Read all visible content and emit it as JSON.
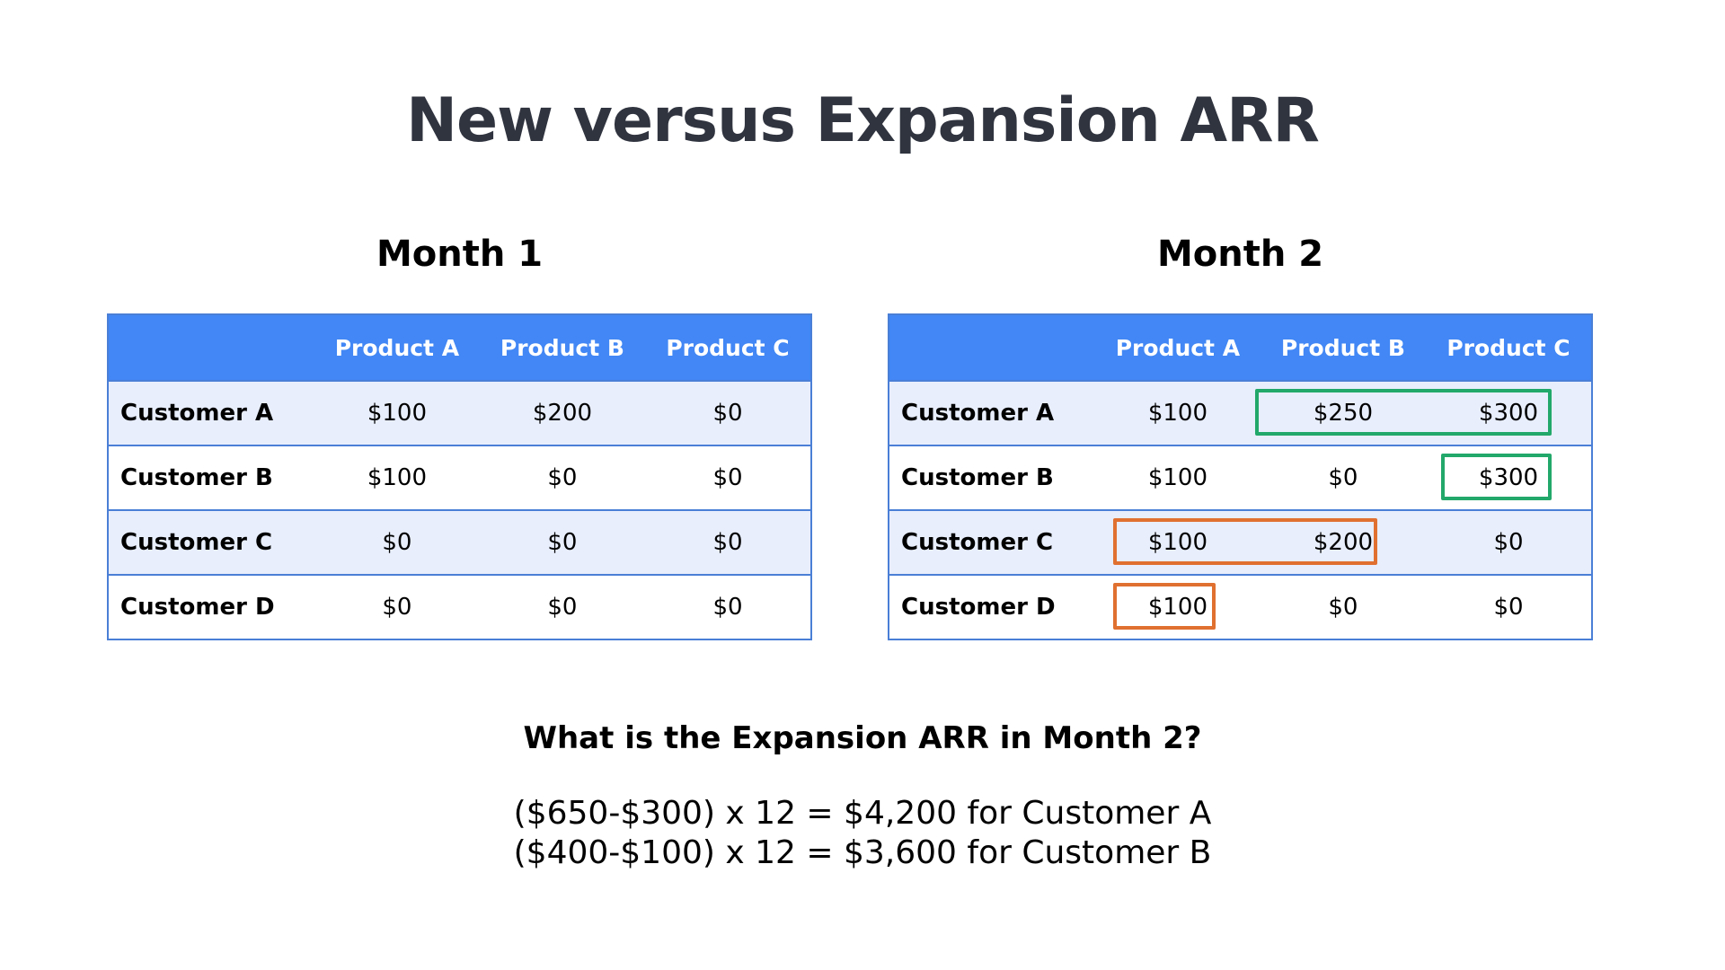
{
  "title": "New versus Expansion ARR",
  "colors": {
    "header": "#4287f5",
    "row_alt": "#e8eefc",
    "border": "#4a7fd6",
    "expansion_highlight": "#22a86a",
    "new_highlight": "#e07030"
  },
  "tables": [
    {
      "heading": "Month 1",
      "columns": [
        "Product A",
        "Product B",
        "Product C"
      ],
      "rows": [
        {
          "name": "Customer A",
          "values": [
            "$100",
            "$200",
            "$0"
          ]
        },
        {
          "name": "Customer B",
          "values": [
            "$100",
            "$0",
            "$0"
          ]
        },
        {
          "name": "Customer C",
          "values": [
            "$0",
            "$0",
            "$0"
          ]
        },
        {
          "name": "Customer D",
          "values": [
            "$0",
            "$0",
            "$0"
          ]
        }
      ]
    },
    {
      "heading": "Month 2",
      "columns": [
        "Product A",
        "Product B",
        "Product C"
      ],
      "rows": [
        {
          "name": "Customer A",
          "values": [
            "$100",
            "$250",
            "$300"
          ]
        },
        {
          "name": "Customer B",
          "values": [
            "$100",
            "$0",
            "$300"
          ]
        },
        {
          "name": "Customer C",
          "values": [
            "$100",
            "$200",
            "$0"
          ]
        },
        {
          "name": "Customer D",
          "values": [
            "$100",
            "$0",
            "$0"
          ]
        }
      ],
      "highlights": [
        {
          "row": "Customer A",
          "cells": [
            "Product B",
            "Product C"
          ],
          "color": "green"
        },
        {
          "row": "Customer B",
          "cells": [
            "Product C"
          ],
          "color": "green"
        },
        {
          "row": "Customer C",
          "cells": [
            "Product A",
            "Product B"
          ],
          "color": "orange"
        },
        {
          "row": "Customer D",
          "cells": [
            "Product A"
          ],
          "color": "orange"
        }
      ]
    }
  ],
  "question": "What is the Expansion ARR in Month 2?",
  "answers": [
    "($650-$300) x 12 = $4,200 for Customer A",
    "($400-$100) x 12 = $3,600 for Customer B"
  ]
}
